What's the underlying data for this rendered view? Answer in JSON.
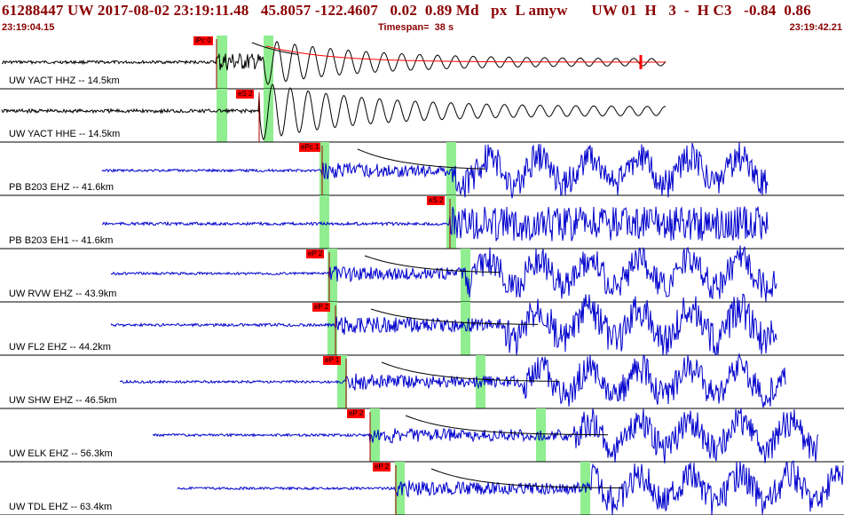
{
  "header": {
    "title": "61288447 UW 2017-08-02 23:19:11.48   45.8057 -122.4607   0.02  0.89 Md   px  L amyw      UW 01  H   3  -  H C3   -0.84  0.86",
    "start_time": "23:19:04.15",
    "timespan": "Timespan=  38 s",
    "end_time": "23:19:42.21"
  },
  "colors": {
    "header_text": "#8b0000",
    "trace_first": "#000000",
    "trace_other": "#0000cc",
    "pick_box": "#ff0000",
    "pick_window": "#90ee90",
    "coda_curve": "#000000",
    "fit_curve": "#ff0000",
    "separator": "#000000"
  },
  "traces": [
    {
      "label": "UW YACT HHZ -- 14.5km",
      "pick": "iPc 0",
      "color": "black"
    },
    {
      "label": "UW YACT HHE -- 14.5km",
      "pick": "eS 2",
      "color": "black"
    },
    {
      "label": "PB B203 EHZ -- 41.6km",
      "pick": "ePc 1",
      "color": "blue"
    },
    {
      "label": "PB B203 EH1 -- 41.6km",
      "pick": "eS 2",
      "color": "blue"
    },
    {
      "label": "UW RVW EHZ -- 43.9km",
      "pick": "eP 2",
      "color": "blue"
    },
    {
      "label": "UW FL2 EHZ -- 44.2km",
      "pick": "eP 2",
      "color": "blue"
    },
    {
      "label": "UW SHW EHZ -- 46.5km",
      "pick": "eP 1",
      "color": "blue"
    },
    {
      "label": "UW ELK EHZ -- 56.3km",
      "pick": "eP 2",
      "color": "blue"
    },
    {
      "label": "UW TDL EHZ -- 63.4km",
      "pick": "eP 2",
      "color": "blue"
    }
  ]
}
